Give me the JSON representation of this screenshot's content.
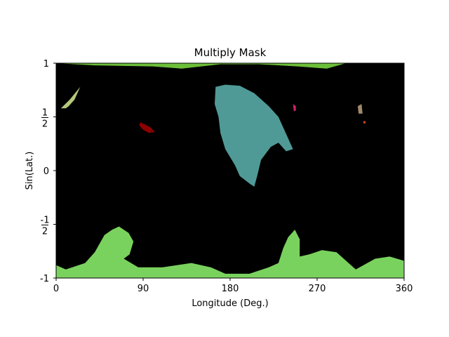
{
  "chart_data": {
    "type": "heatmap",
    "title": "Multiply Mask",
    "xlabel": "Longitude (Deg.)",
    "ylabel": "Sin(Lat.)",
    "xlim": [
      0,
      360
    ],
    "ylim": [
      -1,
      1
    ],
    "x_ticks": [
      {
        "value": 0,
        "label": "0"
      },
      {
        "value": 90,
        "label": "90"
      },
      {
        "value": 180,
        "label": "180"
      },
      {
        "value": 270,
        "label": "270"
      },
      {
        "value": 360,
        "label": "360"
      }
    ],
    "y_ticks": [
      {
        "value": 1,
        "label": "1"
      },
      {
        "value": 0.5,
        "label": "1/2"
      },
      {
        "value": 0,
        "label": "0"
      },
      {
        "value": -0.5,
        "label": "-1/2"
      },
      {
        "value": -1,
        "label": "-1"
      }
    ],
    "background_color": "#000000",
    "regions": [
      {
        "name": "north-polar-cap",
        "color": "#6dbf3a",
        "points": [
          [
            0,
            1
          ],
          [
            40,
            0.98
          ],
          [
            100,
            0.97
          ],
          [
            130,
            0.95
          ],
          [
            170,
            0.99
          ],
          [
            210,
            0.99
          ],
          [
            250,
            0.97
          ],
          [
            280,
            0.95
          ],
          [
            300,
            1
          ]
        ]
      },
      {
        "name": "north-west-green",
        "color": "#b5c87a",
        "points": [
          [
            5,
            0.58
          ],
          [
            14,
            0.66
          ],
          [
            25,
            0.78
          ],
          [
            22,
            0.72
          ],
          [
            19,
            0.66
          ],
          [
            13,
            0.6
          ],
          [
            10,
            0.58
          ]
        ]
      },
      {
        "name": "dark-red-spot",
        "color": "#8b0000",
        "points": [
          [
            87,
            0.45
          ],
          [
            92,
            0.43
          ],
          [
            98,
            0.4
          ],
          [
            102,
            0.36
          ],
          [
            96,
            0.35
          ],
          [
            90,
            0.38
          ],
          [
            86,
            0.42
          ]
        ]
      },
      {
        "name": "teal-region",
        "color": "#4f9a96",
        "points": [
          [
            165,
            0.78
          ],
          [
            175,
            0.8
          ],
          [
            190,
            0.79
          ],
          [
            205,
            0.72
          ],
          [
            220,
            0.6
          ],
          [
            230,
            0.5
          ],
          [
            235,
            0.4
          ],
          [
            245,
            0.2
          ],
          [
            238,
            0.18
          ],
          [
            230,
            0.26
          ],
          [
            222,
            0.22
          ],
          [
            212,
            0.1
          ],
          [
            208,
            -0.05
          ],
          [
            205,
            -0.15
          ],
          [
            200,
            -0.12
          ],
          [
            190,
            -0.05
          ],
          [
            185,
            0.05
          ],
          [
            175,
            0.2
          ],
          [
            170,
            0.35
          ],
          [
            168,
            0.5
          ],
          [
            164,
            0.62
          ]
        ]
      },
      {
        "name": "pink-spot",
        "color": "#d0206a",
        "points": [
          [
            245,
            0.62
          ],
          [
            248,
            0.6
          ],
          [
            248,
            0.56
          ],
          [
            246,
            0.55
          ]
        ]
      },
      {
        "name": "tan-spot",
        "color": "#a08a6a",
        "points": [
          [
            312,
            0.6
          ],
          [
            316,
            0.62
          ],
          [
            317,
            0.53
          ],
          [
            313,
            0.53
          ]
        ]
      },
      {
        "name": "orange-spot",
        "color": "#e05020",
        "points": [
          [
            318,
            0.46
          ],
          [
            320,
            0.46
          ],
          [
            320,
            0.44
          ],
          [
            318,
            0.44
          ]
        ]
      },
      {
        "name": "south-polar-cap",
        "color": "#7ad25e",
        "points": [
          [
            0,
            -1
          ],
          [
            0,
            -0.88
          ],
          [
            10,
            -0.92
          ],
          [
            30,
            -0.86
          ],
          [
            40,
            -0.76
          ],
          [
            50,
            -0.6
          ],
          [
            58,
            -0.55
          ],
          [
            65,
            -0.52
          ],
          [
            75,
            -0.58
          ],
          [
            80,
            -0.66
          ],
          [
            76,
            -0.78
          ],
          [
            70,
            -0.82
          ],
          [
            85,
            -0.9
          ],
          [
            110,
            -0.9
          ],
          [
            140,
            -0.86
          ],
          [
            160,
            -0.9
          ],
          [
            175,
            -0.96
          ],
          [
            200,
            -0.96
          ],
          [
            220,
            -0.9
          ],
          [
            230,
            -0.86
          ],
          [
            235,
            -0.72
          ],
          [
            240,
            -0.62
          ],
          [
            247,
            -0.55
          ],
          [
            252,
            -0.64
          ],
          [
            252,
            -0.8
          ],
          [
            262,
            -0.78
          ],
          [
            275,
            -0.74
          ],
          [
            290,
            -0.76
          ],
          [
            300,
            -0.84
          ],
          [
            310,
            -0.92
          ],
          [
            330,
            -0.82
          ],
          [
            345,
            -0.8
          ],
          [
            360,
            -0.84
          ],
          [
            360,
            -1
          ]
        ]
      }
    ]
  }
}
